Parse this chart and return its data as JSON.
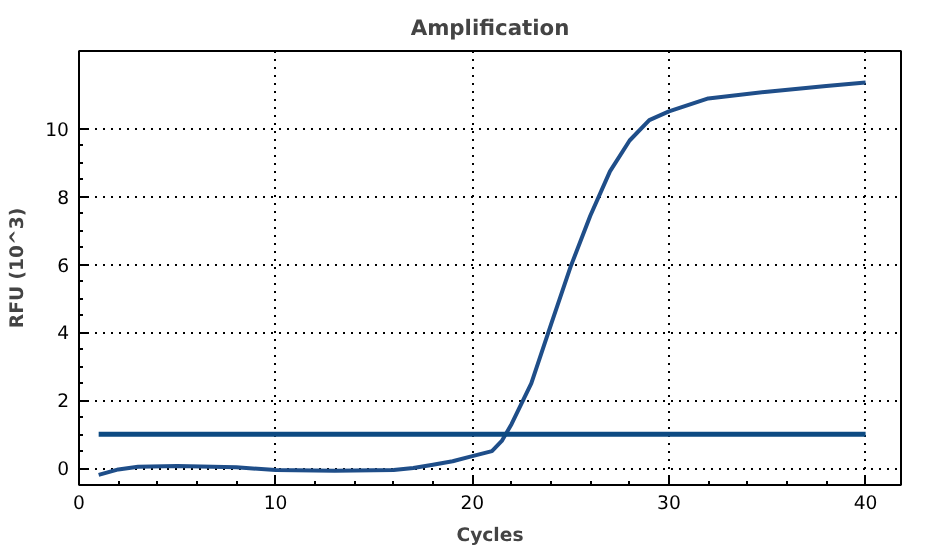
{
  "chart_data": {
    "type": "line",
    "title": "Amplification",
    "xlabel": "Cycles",
    "ylabel": "RFU (10^3)",
    "xlim": [
      0,
      41.8
    ],
    "xticks": [
      0,
      10,
      20,
      30,
      40
    ],
    "ylim": [
      -0.5,
      12.3
    ],
    "yticks": [
      0,
      2,
      4,
      6,
      8,
      10
    ],
    "grid": true,
    "line_style": "solid",
    "marker": "none",
    "series": [
      {
        "color": "#1f4e89",
        "x": [
          1,
          2,
          3,
          5,
          8,
          10,
          13,
          16,
          17,
          18,
          19,
          20,
          21,
          21.5,
          22,
          23,
          24,
          25,
          26,
          27,
          28,
          29,
          30,
          32,
          35,
          38,
          40
        ],
        "values": [
          -0.2,
          -0.04,
          0.04,
          0.06,
          0.02,
          -0.06,
          -0.08,
          -0.06,
          0,
          0.1,
          0.2,
          0.35,
          0.5,
          0.8,
          1.3,
          2.5,
          4.23,
          5.94,
          7.44,
          8.75,
          9.66,
          10.26,
          10.52,
          10.9,
          11.1,
          11.27,
          11.37
        ]
      },
      {
        "color": "#0d4a82",
        "x": [
          1,
          40
        ],
        "values": [
          1.0,
          1.0
        ]
      }
    ]
  }
}
